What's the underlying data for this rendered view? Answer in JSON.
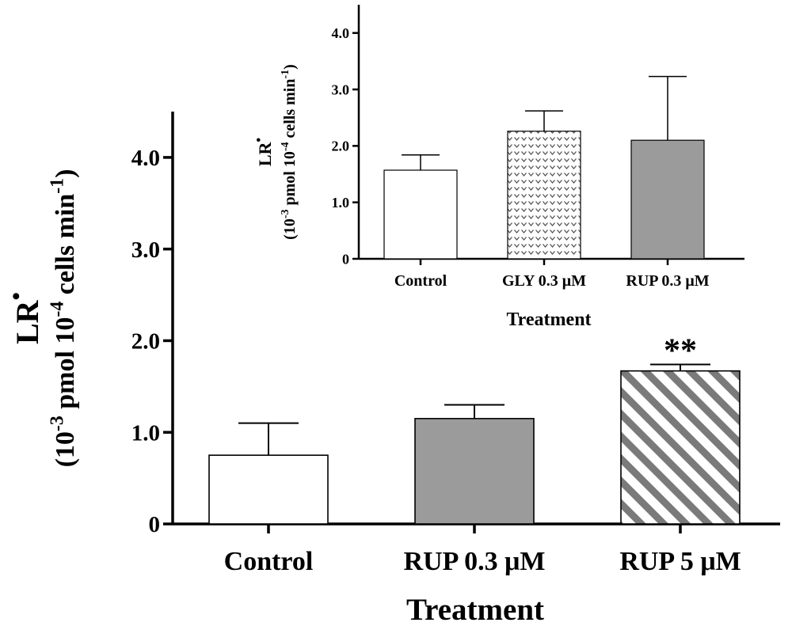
{
  "chart_data": [
    {
      "id": "main",
      "type": "bar",
      "title": "",
      "xlabel": "Treatment",
      "ylabel_line1": "LR",
      "ylabel_sup": "•",
      "ylabel_line2": "(10-3 pmol 10-4 cells min-1)",
      "ylabel_parts": [
        {
          "t": "(10",
          "sup": false
        },
        {
          "t": "-3",
          "sup": true
        },
        {
          "t": " pmol 10",
          "sup": false
        },
        {
          "t": "-4",
          "sup": true
        },
        {
          "t": " cells min",
          "sup": false
        },
        {
          "t": "-1",
          "sup": true
        },
        {
          "t": ")",
          "sup": false
        }
      ],
      "ylim": [
        0,
        4.5
      ],
      "yticks": [
        0,
        1.0,
        2.0,
        3.0,
        4.0
      ],
      "ytick_labels": [
        "0",
        "1.0",
        "2.0",
        "3.0",
        "4.0"
      ],
      "categories": [
        "Control",
        "RUP 0.3 μM",
        "RUP 5 μM"
      ],
      "values": [
        0.75,
        1.15,
        1.67
      ],
      "errors": [
        0.35,
        0.15,
        0.07
      ],
      "fills": [
        "white",
        "gray",
        "diagonal-stripes"
      ],
      "annotations": [
        "",
        "",
        "**"
      ]
    },
    {
      "id": "inset",
      "type": "bar",
      "title": "",
      "xlabel": "Treatment",
      "ylabel_line1": "LR",
      "ylabel_sup": "•",
      "ylabel_line2": "(10-3 pmol 10-4 cells min-1)",
      "ylabel_parts": [
        {
          "t": "(10",
          "sup": false
        },
        {
          "t": "-3",
          "sup": true
        },
        {
          "t": " pmol 10",
          "sup": false
        },
        {
          "t": "-4",
          "sup": true
        },
        {
          "t": " cells min",
          "sup": false
        },
        {
          "t": "-1",
          "sup": true
        },
        {
          "t": ")",
          "sup": false
        }
      ],
      "ylim": [
        0,
        4.5
      ],
      "yticks": [
        0,
        1.0,
        2.0,
        3.0,
        4.0
      ],
      "ytick_labels": [
        "0",
        "1.0",
        "2.0",
        "3.0",
        "4.0"
      ],
      "categories": [
        "Control",
        "GLY 0.3 μM",
        "RUP 0.3 μM"
      ],
      "values": [
        1.57,
        2.26,
        2.1
      ],
      "errors": [
        0.27,
        0.36,
        1.13
      ],
      "fills": [
        "white",
        "chevron-pattern",
        "gray"
      ],
      "annotations": [
        "",
        "",
        ""
      ]
    }
  ],
  "colors": {
    "axis": "#000000",
    "gray_fill": "#9b9b9b",
    "stripe": "#7a7a7a",
    "pattern_mark": "#555555",
    "background": "#ffffff"
  }
}
